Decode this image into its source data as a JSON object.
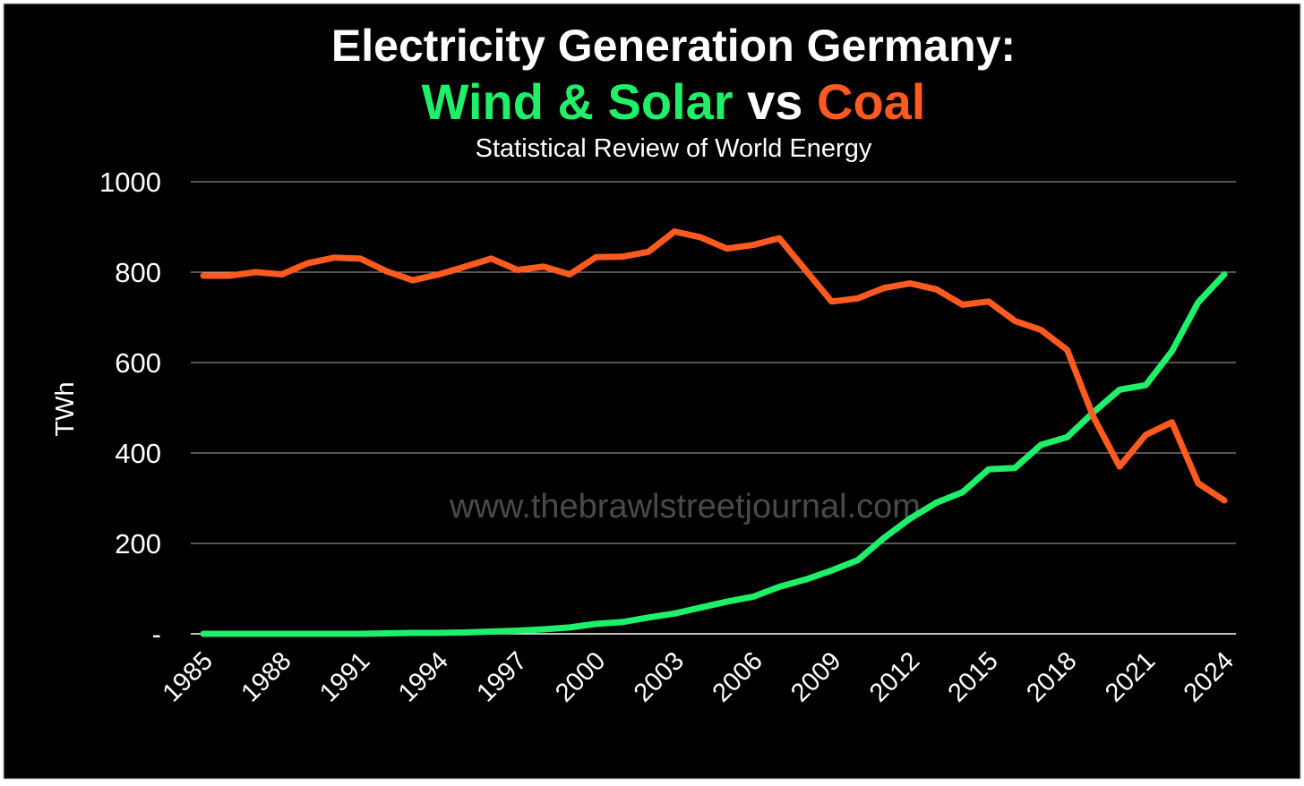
{
  "chart_data": {
    "type": "line",
    "title": "Electricity Generation Germany:",
    "title_joiner": "vs",
    "subtitle": "Statistical Review of World Energy",
    "y_label": "TWh",
    "watermark": "www.thebrawlstreetjournal.com",
    "x": [
      1985,
      1986,
      1987,
      1988,
      1989,
      1990,
      1991,
      1992,
      1993,
      1994,
      1995,
      1996,
      1997,
      1998,
      1999,
      2000,
      2001,
      2002,
      2003,
      2004,
      2005,
      2006,
      2007,
      2008,
      2009,
      2010,
      2011,
      2012,
      2013,
      2014,
      2015,
      2016,
      2017,
      2018,
      2019,
      2020,
      2021,
      2022,
      2023,
      2024
    ],
    "xlim": [
      1985,
      2024
    ],
    "xticks": [
      1985,
      1988,
      1991,
      1994,
      1997,
      2000,
      2003,
      2006,
      2009,
      2012,
      2015,
      2018,
      2021,
      2024
    ],
    "ylim": [
      0,
      1000
    ],
    "yticks": [
      {
        "value": 0,
        "label": "-"
      },
      200,
      400,
      600,
      800,
      1000
    ],
    "grid": true,
    "series": [
      {
        "name": "Wind & Solar",
        "color": "#1ef06a",
        "values": [
          0,
          0,
          0,
          0,
          0,
          0,
          0,
          1,
          2,
          2,
          3,
          5,
          7,
          10,
          14,
          22,
          26,
          36,
          45,
          58,
          71,
          82,
          104,
          120,
          140,
          163,
          212,
          255,
          290,
          313,
          364,
          367,
          418,
          435,
          490,
          540,
          550,
          625,
          733,
          795
        ]
      },
      {
        "name": "Coal",
        "color": "#ff5a1f",
        "values": [
          792,
          792,
          800,
          795,
          820,
          832,
          830,
          802,
          782,
          795,
          812,
          830,
          805,
          812,
          795,
          833,
          834,
          845,
          890,
          877,
          852,
          860,
          875,
          805,
          735,
          742,
          765,
          775,
          762,
          728,
          735,
          692,
          672,
          628,
          480,
          370,
          440,
          468,
          333,
          295
        ]
      }
    ]
  }
}
